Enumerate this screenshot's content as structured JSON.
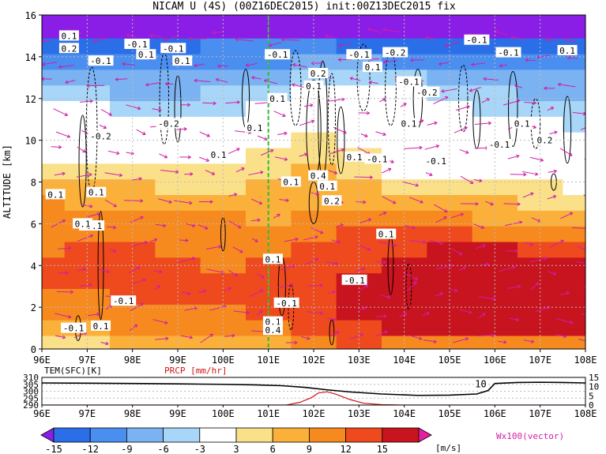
{
  "chart_data": [
    {
      "type": "heatmap",
      "title": "NICAM U (4S) (00Z16DEC2015) init:00Z13DEC2015 fix",
      "ylabel": "ALTITUDE [km]",
      "x_ticks": [
        "96E",
        "97E",
        "98E",
        "99E",
        "100E",
        "101E",
        "102E",
        "103E",
        "104E",
        "105E",
        "106E",
        "107E",
        "108E"
      ],
      "xlim": [
        96,
        108
      ],
      "y_ticks": [
        "0",
        "2",
        "4",
        "6",
        "8",
        "10",
        "12",
        "14",
        "16"
      ],
      "ylim": [
        0,
        16
      ],
      "grid": true,
      "vertical_reference_line_lon": 101,
      "shading_variable": "U wind [m/s]",
      "contour_variable": "vertical velocity (labels)",
      "contour_labels": [
        "0.1",
        "-0.1",
        "0.2",
        "-0.2",
        "0.4"
      ],
      "vector_label": "Wx100(vector)",
      "colorbar": {
        "unit": "[m/s]",
        "levels": [
          -15,
          -12,
          -9,
          -6,
          -3,
          3,
          6,
          9,
          12,
          15
        ],
        "level_labels": [
          "-15",
          "-12",
          "-9",
          "-6",
          "-3",
          "3",
          "6",
          "9",
          "12",
          "15"
        ],
        "colors": [
          "#8a1ee6",
          "#2a6ee8",
          "#4a8ef0",
          "#7ab2f2",
          "#a8d6f8",
          "#ffffff",
          "#fbe08a",
          "#fbb03a",
          "#f78a1e",
          "#ee4a1e",
          "#c8141e",
          "#e81ea0"
        ]
      },
      "rows_km": [
        {
          "alt": 15.25,
          "u": [
            -16,
            -16,
            -16,
            -16,
            -16,
            -16,
            -16,
            -16,
            -16,
            -16,
            -16,
            -16,
            -16
          ]
        },
        {
          "alt": 14.5,
          "u": [
            -13,
            -13,
            -13,
            -13,
            -12,
            -12,
            -12,
            -13,
            -13,
            -13,
            -13,
            -13,
            -14
          ]
        },
        {
          "alt": 13.75,
          "u": [
            -11,
            -11,
            -11,
            -11,
            -10,
            -10,
            -9,
            -9,
            -10,
            -10,
            -10,
            -10,
            -11
          ]
        },
        {
          "alt": 13.0,
          "u": [
            -8,
            -8,
            -9,
            -9,
            -8,
            -7,
            -6,
            -5,
            -6,
            -7,
            -8,
            -8,
            -9
          ]
        },
        {
          "alt": 12.25,
          "u": [
            -5,
            -6,
            -7,
            -7,
            -6,
            -4,
            -3,
            -1,
            -2,
            -4,
            -6,
            -7,
            -8
          ]
        },
        {
          "alt": 11.5,
          "u": [
            -2,
            -3,
            -4,
            -5,
            -4,
            -2,
            0,
            1,
            0,
            -2,
            -4,
            -5,
            -6
          ]
        },
        {
          "alt": 10.75,
          "u": [
            0,
            -1,
            -2,
            -3,
            -2,
            0,
            2,
            2,
            1,
            0,
            -2,
            -3,
            -4
          ]
        },
        {
          "alt": 10.0,
          "u": [
            1,
            1,
            0,
            0,
            1,
            1,
            4,
            2,
            1,
            0,
            -1,
            -2,
            -3
          ]
        },
        {
          "alt": 9.25,
          "u": [
            2,
            2,
            2,
            2,
            2,
            3,
            5,
            3,
            1,
            1,
            0,
            -1,
            -2
          ]
        },
        {
          "alt": 8.5,
          "u": [
            4,
            4,
            4,
            3,
            3,
            4,
            6,
            4,
            2,
            2,
            1,
            0,
            -1
          ]
        },
        {
          "alt": 7.75,
          "u": [
            7,
            7,
            6,
            5,
            5,
            6,
            7,
            6,
            5,
            4,
            3,
            3,
            2
          ]
        },
        {
          "alt": 7.0,
          "u": [
            9,
            8,
            7,
            7,
            7,
            7,
            8,
            8,
            7,
            6,
            6,
            5,
            5
          ]
        },
        {
          "alt": 6.25,
          "u": [
            10,
            10,
            9,
            9,
            9,
            8,
            9,
            10,
            9,
            9,
            8,
            7,
            7
          ]
        },
        {
          "alt": 5.5,
          "u": [
            11,
            11,
            11,
            10,
            10,
            10,
            11,
            12,
            12,
            12,
            11,
            10,
            9
          ]
        },
        {
          "alt": 4.75,
          "u": [
            11,
            12,
            12,
            11,
            11,
            11,
            12,
            13,
            14,
            15,
            15,
            14,
            13
          ]
        },
        {
          "alt": 4.0,
          "u": [
            12,
            12,
            12,
            12,
            11,
            12,
            13,
            14,
            15,
            16,
            16,
            16,
            16
          ]
        },
        {
          "alt": 3.25,
          "u": [
            12,
            12,
            12,
            12,
            12,
            12,
            13,
            15,
            16,
            16,
            16,
            16,
            16
          ]
        },
        {
          "alt": 2.5,
          "u": [
            11,
            11,
            12,
            12,
            12,
            12,
            13,
            15,
            16,
            16,
            16,
            16,
            16
          ]
        },
        {
          "alt": 1.75,
          "u": [
            10,
            10,
            11,
            11,
            11,
            12,
            13,
            15,
            16,
            16,
            16,
            16,
            16
          ]
        },
        {
          "alt": 1.0,
          "u": [
            8,
            8,
            9,
            10,
            10,
            10,
            12,
            14,
            15,
            15,
            15,
            15,
            15
          ]
        },
        {
          "alt": 0.25,
          "u": [
            5,
            5,
            6,
            7,
            8,
            8,
            10,
            12,
            11,
            10,
            10,
            9,
            9
          ]
        }
      ]
    },
    {
      "type": "line",
      "labels": [
        "TEM(SFC)[K]",
        "PRCP [mm/hr]"
      ],
      "x_ticks": [
        "96E",
        "97E",
        "98E",
        "99E",
        "100E",
        "101E",
        "102E",
        "103E",
        "104E",
        "105E",
        "106E",
        "107E",
        "108E"
      ],
      "left_ticks": [
        "310",
        "305",
        "300",
        "295",
        "290"
      ],
      "left_ylim": [
        290,
        310
      ],
      "right_ticks": [
        "15",
        "10",
        "5",
        "0"
      ],
      "right_ylim": [
        0,
        15
      ],
      "annotation": "10",
      "series": [
        {
          "name": "TEM(SFC)[K]",
          "color": "#000000",
          "x": [
            96,
            97,
            98,
            99,
            100,
            100.7,
            101.3,
            101.8,
            102.3,
            102.8,
            103.5,
            104.3,
            105.0,
            105.6,
            105.85,
            106.0,
            106.5,
            107.0,
            107.5,
            108.0
          ],
          "y": [
            306,
            305.8,
            305.6,
            305.3,
            305,
            304.6,
            304,
            302.8,
            301,
            299.5,
            298,
            297,
            297.2,
            298,
            300.5,
            305.6,
            306.3,
            306.5,
            306.3,
            306
          ]
        },
        {
          "name": "PRCP [mm/hr]",
          "color": "#d01414",
          "x": [
            96,
            101.4,
            101.7,
            101.95,
            102.1,
            102.3,
            102.5,
            102.8,
            103.1,
            103.5,
            104,
            108
          ],
          "y": [
            0,
            0,
            1.5,
            4,
            6.5,
            7.2,
            5.8,
            3.0,
            1.0,
            0.2,
            0,
            0
          ]
        }
      ]
    }
  ]
}
